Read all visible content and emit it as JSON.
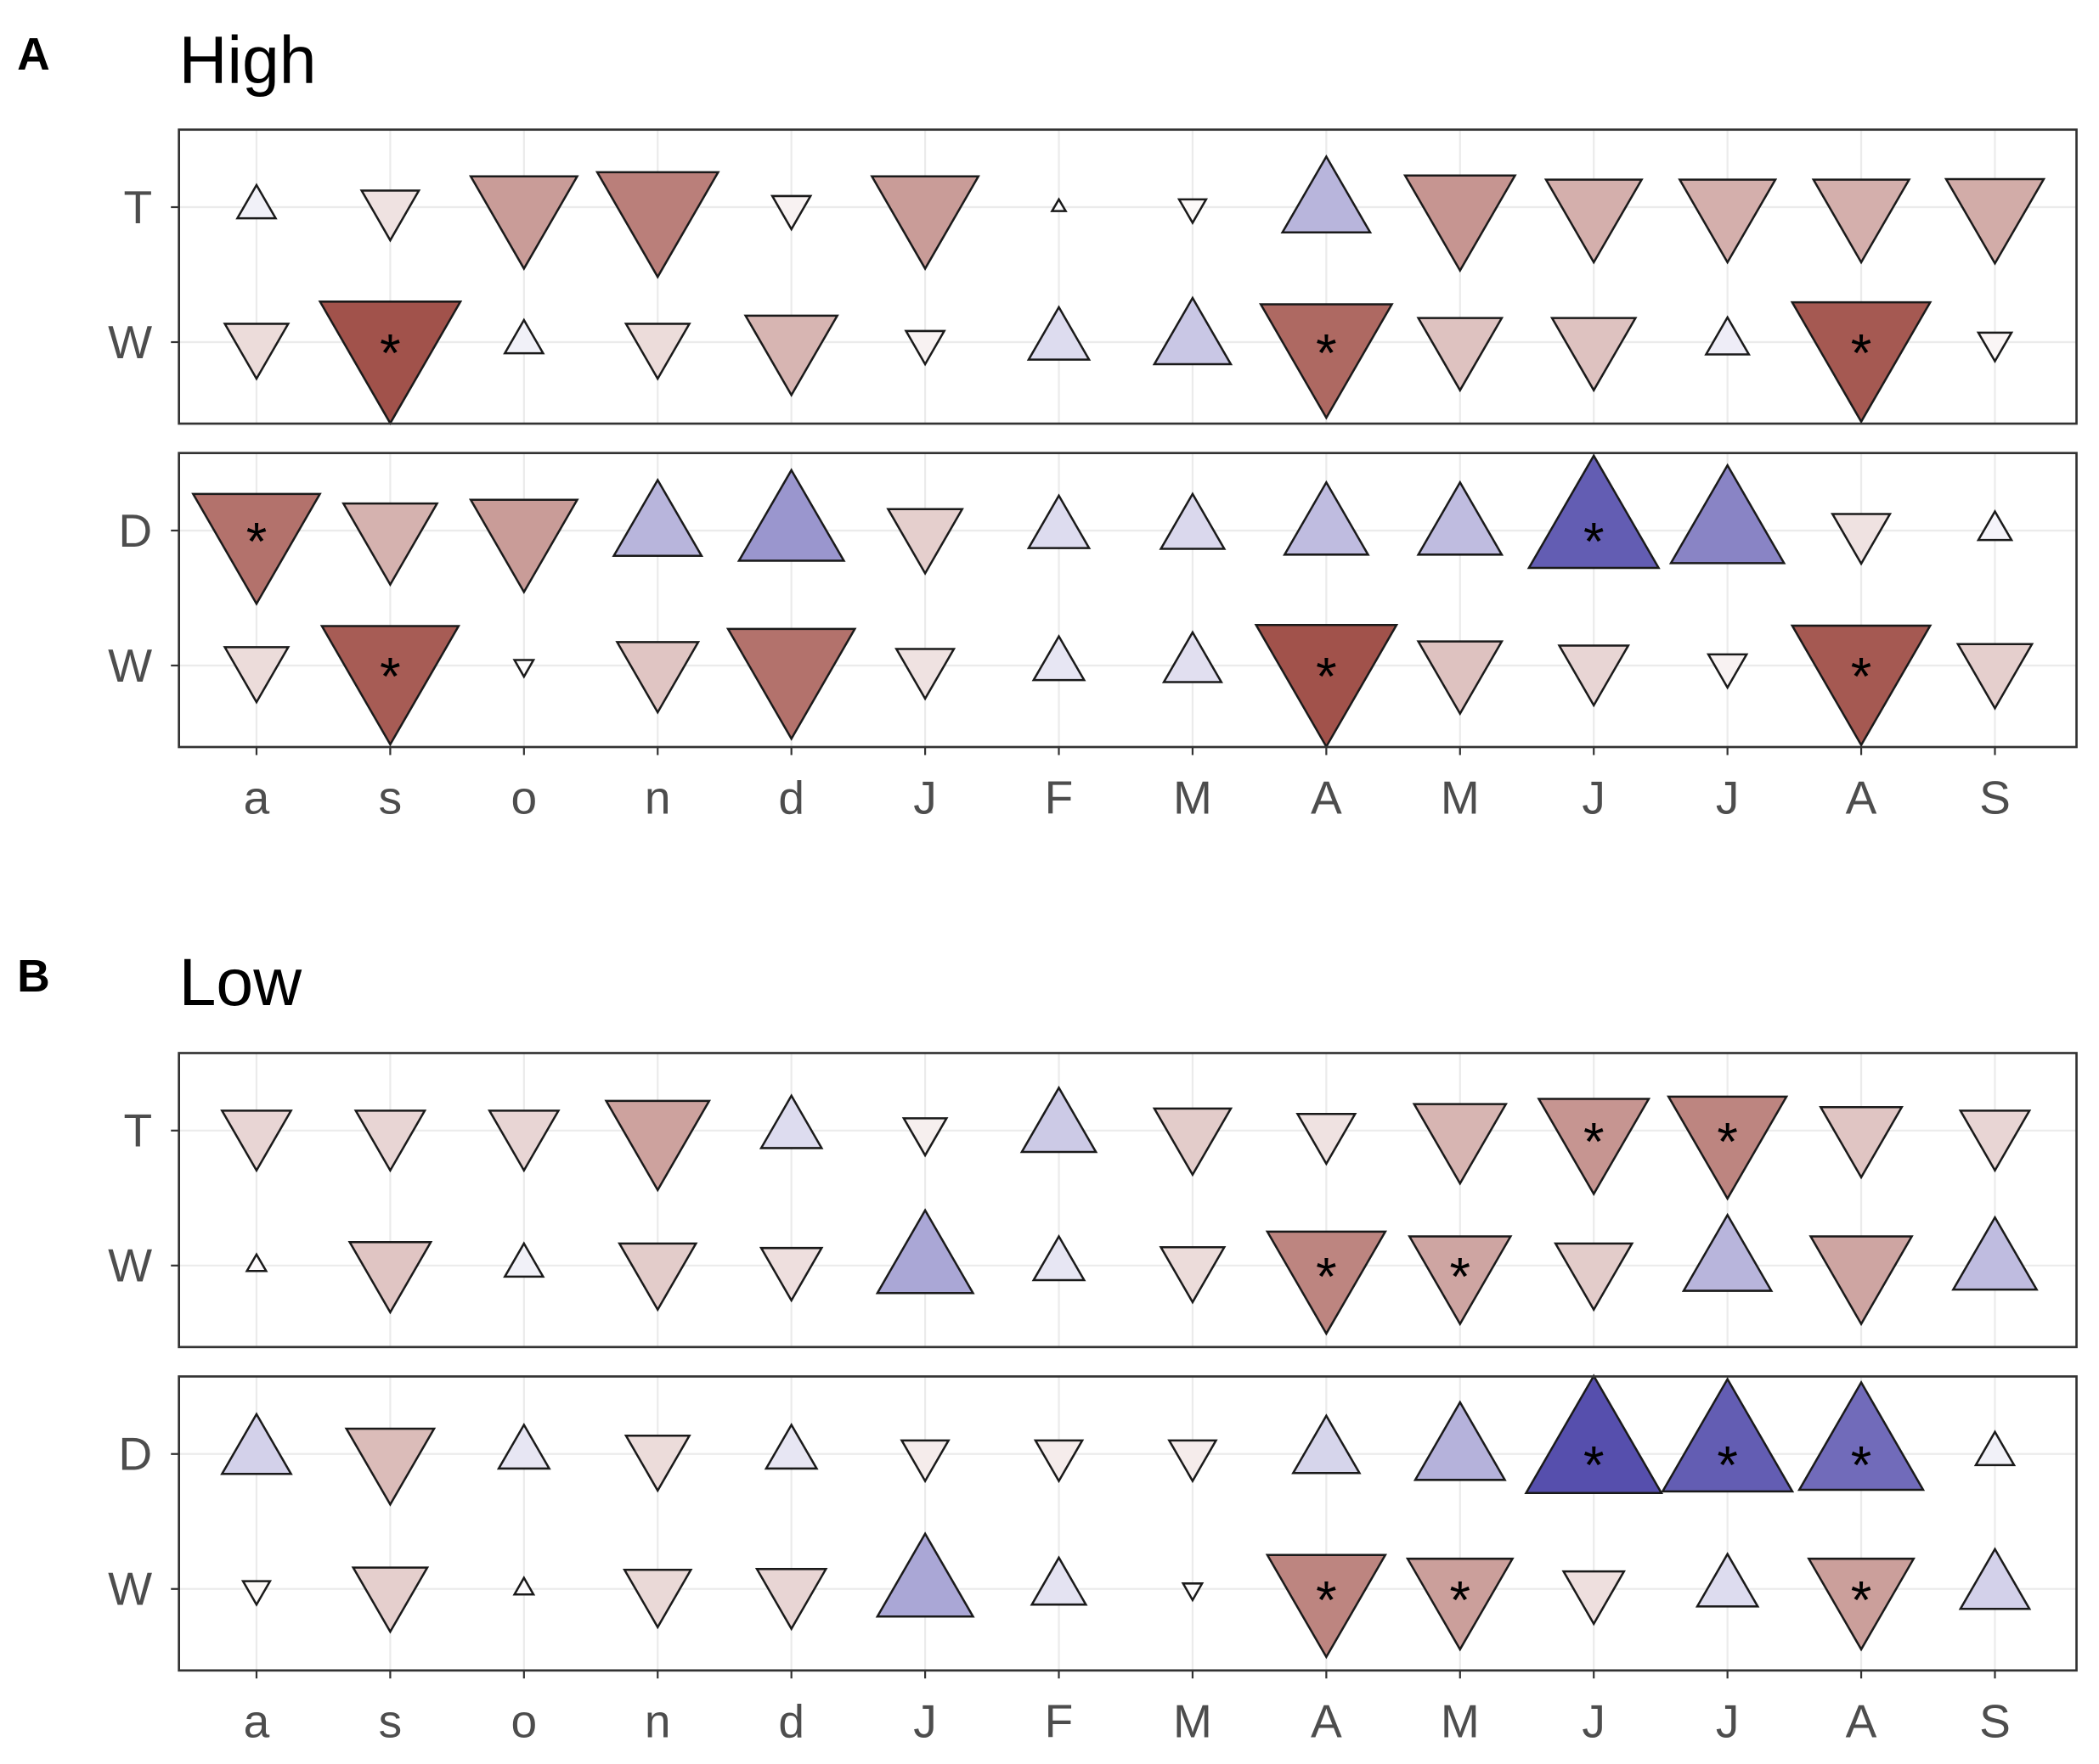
{
  "palette": {
    "negative": "#973f37",
    "zero": "#ffffff",
    "positive": "#342c9c",
    "outline": "#1a1a1a",
    "grid": "#ebebeb",
    "border": "#333333",
    "axis_text": "#4d4d4d",
    "significance": "#000000"
  },
  "chart_data": [
    {
      "type": "heatmap",
      "panel_label": "A",
      "title": "High",
      "xlabel": "",
      "ylabel": "",
      "significance_marker": "*",
      "color_scale_limits": [
        -0.6,
        0.6
      ],
      "x": [
        "a",
        "s",
        "o",
        "n",
        "d",
        "J",
        "F",
        "M",
        "A",
        "M",
        "J",
        "J",
        "A",
        "S"
      ],
      "facets": [
        {
          "rows": [
            {
              "name": "T",
              "values": [
                0.04,
                -0.09,
                -0.31,
                -0.4,
                -0.04,
                -0.31,
                0.005,
                -0.02,
                0.21,
                -0.33,
                -0.25,
                -0.25,
                -0.25,
                -0.26
              ],
              "significant": [
                false,
                false,
                false,
                false,
                false,
                false,
                false,
                false,
                false,
                false,
                false,
                false,
                false,
                false
              ]
            },
            {
              "name": "W",
              "values": [
                -0.11,
                -0.54,
                0.04,
                -0.11,
                -0.23,
                -0.04,
                0.1,
                0.16,
                -0.47,
                -0.19,
                -0.19,
                0.05,
                -0.52,
                -0.03
              ],
              "significant": [
                false,
                true,
                false,
                false,
                false,
                false,
                false,
                false,
                true,
                false,
                false,
                false,
                true,
                false
              ]
            }
          ]
        },
        {
          "rows": [
            {
              "name": "D",
              "values": [
                -0.44,
                -0.24,
                -0.31,
                0.21,
                0.3,
                -0.15,
                0.1,
                0.11,
                0.19,
                0.19,
                0.46,
                0.35,
                -0.09,
                0.03
              ],
              "significant": [
                true,
                false,
                false,
                false,
                false,
                false,
                false,
                false,
                false,
                false,
                true,
                false,
                false,
                false
              ]
            },
            {
              "name": "W",
              "values": [
                -0.11,
                -0.51,
                -0.01,
                -0.18,
                -0.44,
                -0.09,
                0.07,
                0.09,
                -0.54,
                -0.19,
                -0.13,
                -0.04,
                -0.52,
                -0.15
              ],
              "significant": [
                false,
                true,
                false,
                false,
                false,
                false,
                false,
                false,
                true,
                false,
                false,
                false,
                true,
                false
              ]
            }
          ]
        }
      ]
    },
    {
      "type": "heatmap",
      "panel_label": "B",
      "title": "Low",
      "xlabel": "",
      "ylabel": "",
      "significance_marker": "*",
      "color_scale_limits": [
        -0.6,
        0.6
      ],
      "x": [
        "a",
        "s",
        "o",
        "n",
        "d",
        "J",
        "F",
        "M",
        "A",
        "M",
        "J",
        "J",
        "A",
        "S"
      ],
      "facets": [
        {
          "rows": [
            {
              "name": "T",
              "values": [
                -0.13,
                -0.13,
                -0.13,
                -0.29,
                0.1,
                -0.05,
                0.15,
                -0.16,
                -0.09,
                -0.23,
                -0.33,
                -0.38,
                -0.18,
                -0.13
              ],
              "significant": [
                false,
                false,
                false,
                false,
                false,
                false,
                false,
                false,
                false,
                false,
                true,
                true,
                false,
                false
              ]
            },
            {
              "name": "W",
              "values": [
                0.01,
                -0.18,
                0.04,
                -0.16,
                -0.1,
                0.25,
                0.07,
                -0.11,
                -0.38,
                -0.28,
                -0.16,
                0.21,
                -0.28,
                0.19
              ],
              "significant": [
                false,
                false,
                false,
                false,
                false,
                false,
                false,
                false,
                true,
                true,
                false,
                false,
                false,
                false
              ]
            }
          ]
        },
        {
          "rows": [
            {
              "name": "D",
              "values": [
                0.13,
                -0.21,
                0.07,
                -0.11,
                0.07,
                -0.06,
                -0.06,
                -0.06,
                0.12,
                0.22,
                0.5,
                0.46,
                0.42,
                0.04
              ],
              "significant": [
                false,
                false,
                false,
                false,
                false,
                false,
                false,
                false,
                false,
                false,
                true,
                true,
                true,
                false
              ]
            },
            {
              "name": "W",
              "values": [
                -0.02,
                -0.15,
                0.01,
                -0.12,
                -0.13,
                0.25,
                0.08,
                -0.01,
                -0.38,
                -0.3,
                -0.1,
                0.1,
                -0.3,
                0.13
              ],
              "significant": [
                false,
                false,
                false,
                false,
                false,
                false,
                false,
                false,
                true,
                true,
                false,
                false,
                true,
                false
              ]
            }
          ]
        }
      ]
    }
  ]
}
